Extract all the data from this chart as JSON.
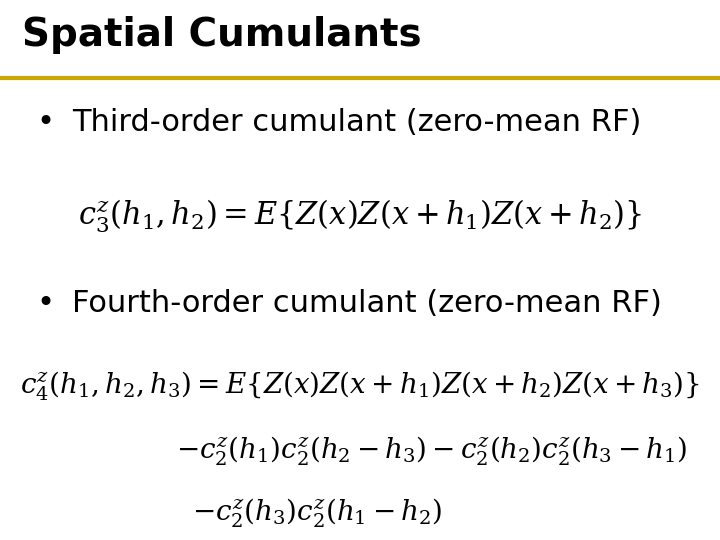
{
  "title": "Spatial Cumulants",
  "title_fontsize": 28,
  "title_color": "#000000",
  "separator_color": "#C8A800",
  "bg_color": "#ffffff",
  "bullet1_text": "Third-order cumulant (zero-mean RF)",
  "bullet2_text": "Fourth-order cumulant (zero-mean RF)",
  "formula1": "c_3^z(h_1,h_2) = E\\left\\{Z(x)Z(x+h_1)Z(x+h_2)\\right\\}",
  "formula2a": "c_4^z(h_1,h_2,h_3) = E\\left\\{Z(x)Z(x+h_1)Z(x+h_2)Z(x+h_3)\\right\\}",
  "formula2b": "- c_2^z(h_1)c_2^z(h_2-h_3) - c_2^z(h_2)c_2^z(h_3-h_1)",
  "formula2c": "- c_2^z(h_3)c_2^z(h_1-h_2)",
  "text_color": "#000000",
  "bullet_fontsize": 22,
  "formula_fontsize": 20
}
